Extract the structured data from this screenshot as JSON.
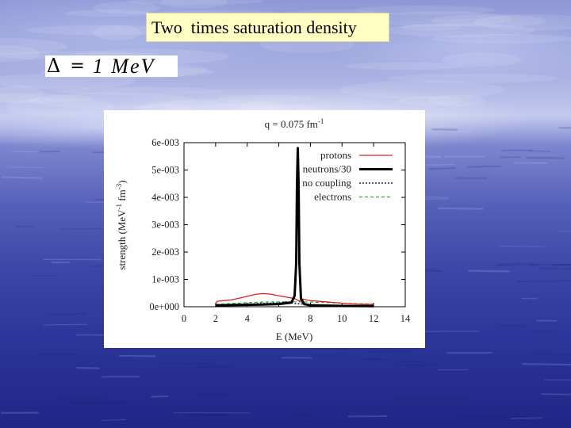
{
  "slide": {
    "title": "Two  times saturation density",
    "formula": {
      "symbol": "Δ",
      "equals": "=",
      "value": "1 MeV"
    }
  },
  "chart_data": {
    "type": "line",
    "title": "q = 0.075 fm",
    "title_sup": "-1",
    "xlabel": "E (MeV)",
    "ylabel": "strength (MeV-1 fm-3)",
    "ylabel_parts": [
      "strength (MeV",
      "-1",
      " fm",
      "-3",
      ")"
    ],
    "xlim": [
      0,
      14
    ],
    "ylim": [
      0,
      0.006
    ],
    "x_ticks": [
      "0",
      "2",
      "4",
      "6",
      "8",
      "10",
      "12",
      "14"
    ],
    "y_ticks": [
      "0e+000",
      "1e-003",
      "2e-003",
      "3e-003",
      "4e-003",
      "5e-003",
      "6e-003"
    ],
    "legend_position": "top-right",
    "series": [
      {
        "name": "protons",
        "color": "#e02020",
        "style": "solid",
        "x": [
          2.0,
          2.1,
          3.0,
          4.0,
          4.5,
          5.0,
          5.5,
          6.0,
          6.5,
          7.0,
          7.3,
          7.5,
          8.0,
          9.0,
          10.0,
          11.0,
          12.0
        ],
        "y": [
          0.0001,
          0.0002,
          0.00025,
          0.00038,
          0.00045,
          0.00048,
          0.00046,
          0.0004,
          0.00035,
          0.0003,
          0.0002,
          0.00028,
          0.00022,
          0.00018,
          0.00013,
          0.0001,
          8e-05
        ]
      },
      {
        "name": "neutrons/30",
        "color": "#000000",
        "style": "bold",
        "x": [
          2.0,
          3.0,
          4.0,
          5.0,
          6.0,
          6.8,
          7.0,
          7.1,
          7.15,
          7.2,
          7.25,
          7.3,
          7.4,
          7.6,
          8.0,
          9.0,
          10.0,
          12.0
        ],
        "y": [
          5e-05,
          6e-05,
          7e-05,
          8e-05,
          0.0001,
          0.00015,
          0.0004,
          0.0016,
          0.0045,
          0.0058,
          0.0045,
          0.0016,
          0.0003,
          0.0001,
          5e-05,
          4e-05,
          3e-05,
          2e-05
        ]
      },
      {
        "name": "no coupling",
        "color": "#1a1a80",
        "style": "dotted",
        "x": [
          2.0,
          3.0,
          4.0,
          5.0,
          6.0,
          6.5,
          7.0,
          7.5,
          8.0,
          9.0,
          10.0,
          12.0
        ],
        "y": [
          3e-05,
          8e-05,
          0.0001,
          0.00012,
          0.00014,
          0.00018,
          0.00012,
          0.0001,
          8e-05,
          6e-05,
          5e-05,
          4e-05
        ]
      },
      {
        "name": "electrons",
        "color": "#20b020",
        "style": "dashed",
        "x": [
          2.0,
          3.0,
          4.0,
          5.0,
          6.0,
          7.0,
          8.0,
          9.0,
          10.0,
          11.0,
          12.0
        ],
        "y": [
          8e-05,
          0.00012,
          0.00015,
          0.00017,
          0.00018,
          0.00018,
          0.00017,
          0.00015,
          0.00013,
          0.00011,
          0.0001
        ]
      }
    ]
  }
}
